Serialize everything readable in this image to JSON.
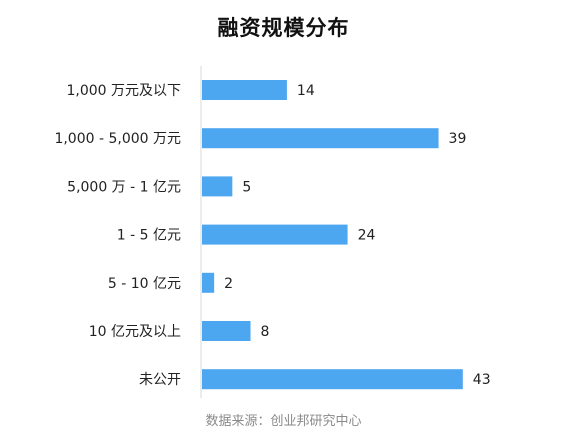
{
  "chart_data": {
    "type": "bar",
    "orientation": "horizontal",
    "title": "融资规模分布",
    "source": "数据来源：创业邦研究中心",
    "categories": [
      "1,000 万元及以下",
      "1,000 - 5,000 万元",
      "5,000 万 - 1 亿元",
      "1 - 5 亿元",
      "5 - 10 亿元",
      "10 亿元及以上",
      "未公开"
    ],
    "values": [
      14,
      39,
      5,
      24,
      2,
      8,
      43
    ],
    "xlim": [
      0,
      46
    ],
    "grid": false,
    "legend": "none",
    "data_labels": true,
    "bar_color": "#4da6f0",
    "axis_color": "#d9d9d9"
  }
}
